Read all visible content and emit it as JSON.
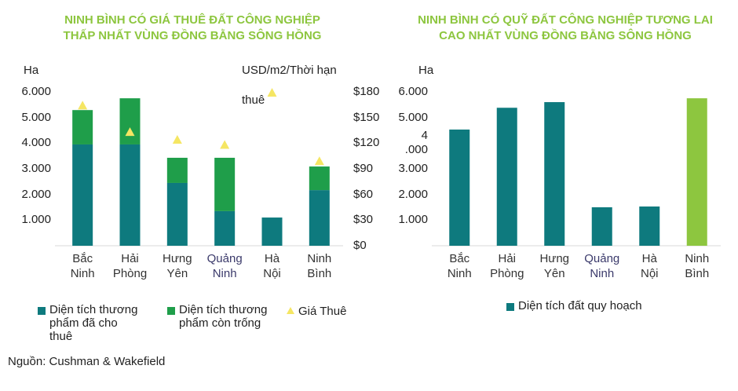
{
  "chart_data": [
    {
      "type": "bar",
      "stacked": true,
      "title": [
        "NINH BÌNH CÓ GIÁ THUÊ ĐẤT CÔNG NGHIỆP",
        "THẤP NHẤT VÙNG ĐỒNG BẰNG SÔNG HỒNG"
      ],
      "title_color": "#8dc63f",
      "ylabel": "Ha",
      "y2label": [
        "USD/m2/Thời hạn",
        "thuê"
      ],
      "categories": [
        "Bắc Ninh",
        "Hải Phòng",
        "Hưng Yên",
        "Quảng Ninh",
        "Hà Nội",
        "Ninh Bình"
      ],
      "category_label_colors": [
        "#333333",
        "#333333",
        "#333333",
        "#3b3a6b",
        "#333333",
        "#333333"
      ],
      "series": [
        {
          "name": "Diện tích thương phẩm đã cho thuê",
          "color": "#0e7a7e",
          "values": [
            3950,
            3950,
            2450,
            1350,
            1100,
            2170
          ]
        },
        {
          "name": "Diện tích thương phẩm còn trống",
          "color": "#1f9e4a",
          "values": [
            1340,
            1800,
            980,
            2080,
            0,
            920
          ]
        },
        {
          "name": "Giá Thuê",
          "color": "#f5e663",
          "marker": "triangle",
          "axis": "y2",
          "values": [
            164,
            133,
            124,
            118,
            179,
            99
          ]
        }
      ],
      "ylim": [
        0,
        6000
      ],
      "yticks": [
        {
          "value": 1000,
          "label": "1.000"
        },
        {
          "value": 2000,
          "label": "2.000"
        },
        {
          "value": 3000,
          "label": "3.000"
        },
        {
          "value": 4000,
          "label": "4.000"
        },
        {
          "value": 5000,
          "label": "5.000"
        },
        {
          "value": 6000,
          "label": "6.000"
        }
      ],
      "y2lim": [
        0,
        180
      ],
      "y2ticks": [
        {
          "value": 0,
          "label": "$0"
        },
        {
          "value": 30,
          "label": "$30"
        },
        {
          "value": 60,
          "label": "$60"
        },
        {
          "value": 90,
          "label": "$90"
        },
        {
          "value": 120,
          "label": "$120"
        },
        {
          "value": 150,
          "label": "$150"
        },
        {
          "value": 180,
          "label": "$180"
        }
      ]
    },
    {
      "type": "bar",
      "title": [
        "NINH BÌNH CÓ QUỸ ĐẤT CÔNG NGHIỆP TƯƠNG LAI",
        "CAO NHẤT VÙNG ĐỒNG BẰNG SÔNG HỒNG"
      ],
      "title_color": "#8dc63f",
      "ylabel": "Ha",
      "categories": [
        "Bắc Ninh",
        "Hải Phòng",
        "Hưng Yên",
        "Quảng Ninh",
        "Hà Nội",
        "Ninh Bình"
      ],
      "category_label_colors": [
        "#333333",
        "#333333",
        "#333333",
        "#3b3a6b",
        "#333333",
        "#333333"
      ],
      "series": [
        {
          "name": "Diện tích đất quy hoạch",
          "color": "#0e7a7e",
          "colors": [
            "#0e7a7e",
            "#0e7a7e",
            "#0e7a7e",
            "#0e7a7e",
            "#0e7a7e",
            "#8dc63f"
          ],
          "values": [
            4530,
            5380,
            5600,
            1500,
            1530,
            5750
          ]
        }
      ],
      "ylim": [
        0,
        6000
      ],
      "yticks": [
        {
          "value": 1000,
          "label": "1.000"
        },
        {
          "value": 2000,
          "label": "2.000"
        },
        {
          "value": 3000,
          "label": "3.000"
        },
        {
          "value": 4000,
          "label": "4\n.000"
        },
        {
          "value": 5000,
          "label": "5.000"
        },
        {
          "value": 6000,
          "label": "6.000"
        }
      ]
    }
  ],
  "source": "Nguồn: Cushman & Wakefield"
}
